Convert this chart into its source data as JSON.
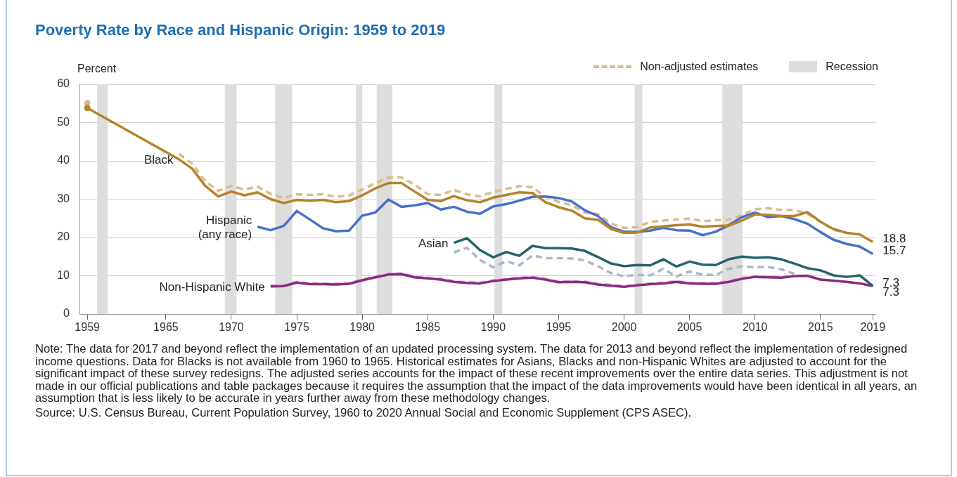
{
  "chart_data": {
    "type": "line",
    "title": "Poverty Rate by Race and Hispanic Origin: 1959 to 2019",
    "ylabel": "Percent",
    "annotations": [
      "Note: The data for 2017 and beyond reflect the implementation of an updated processing system. The data for 2013 and beyond reflect the implementation of redesigned income questions. Data for Blacks is not available from 1960 to 1965. Historical estimates for Asians, Blacks and non-Hispanic Whites are adjusted to account for the significant impact of these survey redesigns. The adjusted series accounts for the impact of these recent improvements over the entire data series. This adjustment is not made in our official publications and table packages because it requires the assumption that the impact of the data improvements would have been identical in all years, an assumption that is less likely to be accurate in years further away from these methodology changes.",
      "Source: U.S. Census Bureau, Current Population Survey, 1960 to 2020 Annual Social and Economic Supplement (CPS ASEC)."
    ],
    "x": [
      1959,
      1960,
      1961,
      1962,
      1963,
      1964,
      1965,
      1966,
      1967,
      1968,
      1969,
      1970,
      1971,
      1972,
      1973,
      1974,
      1975,
      1976,
      1977,
      1978,
      1979,
      1980,
      1981,
      1982,
      1983,
      1984,
      1985,
      1986,
      1987,
      1988,
      1989,
      1990,
      1991,
      1992,
      1993,
      1994,
      1995,
      1996,
      1997,
      1998,
      1999,
      2000,
      2001,
      2002,
      2003,
      2004,
      2005,
      2006,
      2007,
      2008,
      2009,
      2010,
      2011,
      2012,
      2013,
      2014,
      2015,
      2016,
      2017,
      2018,
      2019
    ],
    "series": [
      {
        "name": "Non-adjusted estimates",
        "color": "#dcbb85",
        "line_style": "dashed",
        "values": [
          55.1,
          null,
          null,
          null,
          null,
          null,
          null,
          41.8,
          39.3,
          34.7,
          32.2,
          33.5,
          32.5,
          33.3,
          31.4,
          30.3,
          31.3,
          31.1,
          31.3,
          30.6,
          31,
          32.5,
          34.2,
          35.6,
          35.7,
          33.8,
          31.3,
          31.1,
          32.4,
          31.3,
          30.7,
          31.9,
          32.7,
          33.4,
          33.1,
          30.6,
          29.3,
          28.4,
          26.5,
          26.1,
          23.6,
          22.5,
          22.7,
          24.1,
          24.4,
          24.7,
          24.9,
          24.3,
          24.5,
          24.7,
          25.8,
          27.4,
          27.6,
          27.2,
          27.2,
          26.2,
          24.1,
          22,
          21.2,
          null,
          null
        ]
      },
      {
        "color": "#a9b8c6",
        "line_style": "dashed",
        "values": [
          null,
          null,
          null,
          null,
          null,
          null,
          null,
          null,
          null,
          null,
          null,
          null,
          null,
          null,
          null,
          null,
          null,
          null,
          null,
          null,
          null,
          null,
          null,
          null,
          null,
          null,
          null,
          null,
          16.1,
          17.3,
          14.1,
          12.2,
          13.8,
          12.7,
          15.3,
          14.6,
          14.6,
          14.5,
          14,
          12.5,
          10.7,
          9.9,
          10.2,
          10.1,
          11.8,
          9.8,
          11.1,
          10.3,
          10.2,
          11.8,
          12.5,
          12.2,
          12.3,
          11.7,
          10.5,
          null,
          null,
          null,
          null,
          null,
          null
        ]
      },
      {
        "color": "#dcaad4",
        "line_style": "dashed",
        "values": [
          null,
          null,
          null,
          null,
          null,
          null,
          null,
          null,
          null,
          null,
          null,
          null,
          null,
          null,
          7.4,
          7.5,
          8.4,
          8,
          8,
          7.9,
          8.1,
          9,
          9.8,
          10.5,
          10.6,
          9.8,
          9.5,
          9.2,
          8.6,
          8.3,
          8.2,
          8.8,
          9.2,
          9.5,
          9.7,
          9.2,
          8.5,
          8.6,
          8.5,
          7.9,
          7.6,
          7.3,
          7.7,
          8,
          8.2,
          8.6,
          8.2,
          8.1,
          8.1,
          8.6,
          9.4,
          9.9,
          9.8,
          9.7,
          9.9,
          null,
          null,
          null,
          null,
          null,
          null
        ]
      },
      {
        "name": "Black",
        "color": "#b5832a",
        "values": [
          53.8,
          null,
          null,
          null,
          null,
          null,
          null,
          40.4,
          38,
          33.5,
          30.7,
          32,
          31,
          31.8,
          30,
          29,
          29.8,
          29.6,
          29.8,
          29.2,
          29.5,
          31,
          32.8,
          34.2,
          34.2,
          32,
          29.8,
          29.5,
          30.8,
          29.7,
          29.2,
          30.4,
          31.1,
          31.8,
          31.6,
          29.2,
          27.9,
          27,
          25,
          24.6,
          22.2,
          21.2,
          21.3,
          22.6,
          22.9,
          23.2,
          23.4,
          22.8,
          23,
          23.1,
          24.4,
          26,
          25.9,
          25.6,
          25.6,
          26.6,
          24.1,
          22.2,
          21.2,
          20.8,
          18.8
        ],
        "value_labels": [
          null,
          null,
          null,
          null,
          null,
          null,
          null,
          null,
          null,
          null,
          null,
          null,
          null,
          null,
          null,
          null,
          null,
          null,
          null,
          null,
          null,
          null,
          null,
          null,
          null,
          null,
          null,
          null,
          null,
          null,
          null,
          null,
          null,
          null,
          null,
          null,
          null,
          null,
          null,
          null,
          null,
          null,
          null,
          null,
          null,
          null,
          null,
          null,
          null,
          null,
          null,
          null,
          null,
          null,
          null,
          null,
          null,
          null,
          null,
          null,
          "18.8"
        ]
      },
      {
        "name": "Hispanic\n(any race)",
        "color": "#4a6fc9",
        "values": [
          null,
          null,
          null,
          null,
          null,
          null,
          null,
          null,
          null,
          null,
          null,
          null,
          null,
          22.8,
          21.9,
          23,
          26.9,
          24.7,
          22.4,
          21.6,
          21.8,
          25.7,
          26.5,
          29.9,
          28,
          28.4,
          29,
          27.3,
          28,
          26.7,
          26.2,
          28.1,
          28.7,
          29.6,
          30.6,
          30.7,
          30.3,
          29.4,
          27.1,
          25.6,
          22.7,
          21.5,
          21.4,
          21.8,
          22.5,
          21.9,
          21.8,
          20.6,
          21.5,
          23.2,
          25.3,
          26.5,
          25.3,
          25.6,
          24.8,
          23.6,
          21.4,
          19.4,
          18.3,
          17.6,
          15.7
        ],
        "value_labels": [
          null,
          null,
          null,
          null,
          null,
          null,
          null,
          null,
          null,
          null,
          null,
          null,
          null,
          null,
          null,
          null,
          null,
          null,
          null,
          null,
          null,
          null,
          null,
          null,
          null,
          null,
          null,
          null,
          null,
          null,
          null,
          null,
          null,
          null,
          null,
          null,
          null,
          null,
          null,
          null,
          null,
          null,
          null,
          null,
          null,
          null,
          null,
          null,
          null,
          null,
          null,
          null,
          null,
          null,
          null,
          null,
          null,
          null,
          null,
          null,
          "15.7"
        ]
      },
      {
        "name": "Asian",
        "color": "#24636e",
        "values": [
          null,
          null,
          null,
          null,
          null,
          null,
          null,
          null,
          null,
          null,
          null,
          null,
          null,
          null,
          null,
          null,
          null,
          null,
          null,
          null,
          null,
          null,
          null,
          null,
          null,
          null,
          null,
          null,
          18.6,
          19.8,
          16.7,
          14.8,
          16.2,
          15.2,
          17.8,
          17.2,
          17.2,
          17.1,
          16.5,
          14.9,
          13.2,
          12.5,
          12.8,
          12.7,
          14.3,
          12.4,
          13.7,
          12.9,
          12.8,
          14.3,
          15,
          14.7,
          14.8,
          14.3,
          13.2,
          12,
          11.4,
          10.1,
          9.7,
          10.1,
          7.3
        ],
        "value_labels": [
          null,
          null,
          null,
          null,
          null,
          null,
          null,
          null,
          null,
          null,
          null,
          null,
          null,
          null,
          null,
          null,
          null,
          null,
          null,
          null,
          null,
          null,
          null,
          null,
          null,
          null,
          null,
          null,
          null,
          null,
          null,
          null,
          null,
          null,
          null,
          null,
          null,
          null,
          null,
          null,
          null,
          null,
          null,
          null,
          null,
          null,
          null,
          null,
          null,
          null,
          null,
          null,
          null,
          null,
          null,
          null,
          null,
          null,
          null,
          null,
          "7.3"
        ]
      },
      {
        "name": "Non-Hispanic White",
        "color": "#8b2a7f",
        "values": [
          null,
          null,
          null,
          null,
          null,
          null,
          null,
          null,
          null,
          null,
          null,
          null,
          null,
          null,
          7.2,
          7.3,
          8.2,
          7.8,
          7.8,
          7.7,
          7.9,
          8.8,
          9.6,
          10.3,
          10.4,
          9.6,
          9.3,
          9,
          8.4,
          8.1,
          8,
          8.6,
          9,
          9.3,
          9.5,
          9,
          8.3,
          8.4,
          8.3,
          7.7,
          7.4,
          7.1,
          7.5,
          7.8,
          8,
          8.4,
          8,
          7.9,
          7.9,
          8.4,
          9.2,
          9.7,
          9.6,
          9.5,
          9.9,
          10,
          9,
          8.7,
          8.4,
          8,
          7.3
        ],
        "value_labels": [
          null,
          null,
          null,
          null,
          null,
          null,
          null,
          null,
          null,
          null,
          null,
          null,
          null,
          null,
          null,
          null,
          null,
          null,
          null,
          null,
          null,
          null,
          null,
          null,
          null,
          null,
          null,
          null,
          null,
          null,
          null,
          null,
          null,
          null,
          null,
          null,
          null,
          null,
          null,
          null,
          null,
          null,
          null,
          null,
          null,
          null,
          null,
          null,
          null,
          null,
          null,
          null,
          null,
          null,
          null,
          null,
          null,
          null,
          null,
          null,
          "7.3"
        ]
      }
    ],
    "bands": [
      {
        "axis": "x",
        "from": 1959.75,
        "to": 1960.55,
        "label": "Recession",
        "color": "#dddddd"
      },
      {
        "axis": "x",
        "from": 1969.5,
        "to": 1970.4,
        "color": "#dddddd"
      },
      {
        "axis": "x",
        "from": 1973.35,
        "to": 1974.65,
        "color": "#dddddd"
      },
      {
        "axis": "x",
        "from": 1979.5,
        "to": 1980,
        "color": "#dddddd"
      },
      {
        "axis": "x",
        "from": 1981.1,
        "to": 1982.3,
        "color": "#dddddd"
      },
      {
        "axis": "x",
        "from": 1990.1,
        "to": 1990.7,
        "color": "#dddddd"
      },
      {
        "axis": "x",
        "from": 2000.8,
        "to": 2001.4,
        "color": "#dddddd"
      },
      {
        "axis": "x",
        "from": 2007.5,
        "to": 2009.05,
        "color": "#dddddd"
      }
    ],
    "xlim": [
      1958.4,
      2019.2
    ],
    "xticks": [
      1959,
      1965,
      1970,
      1975,
      1980,
      1985,
      1990,
      1995,
      2000,
      2005,
      2010,
      2015,
      2019
    ],
    "ylim": [
      0,
      60
    ],
    "yticks": [
      0,
      10,
      20,
      30,
      40,
      50,
      60
    ],
    "grid": "y",
    "legend": "top right"
  }
}
